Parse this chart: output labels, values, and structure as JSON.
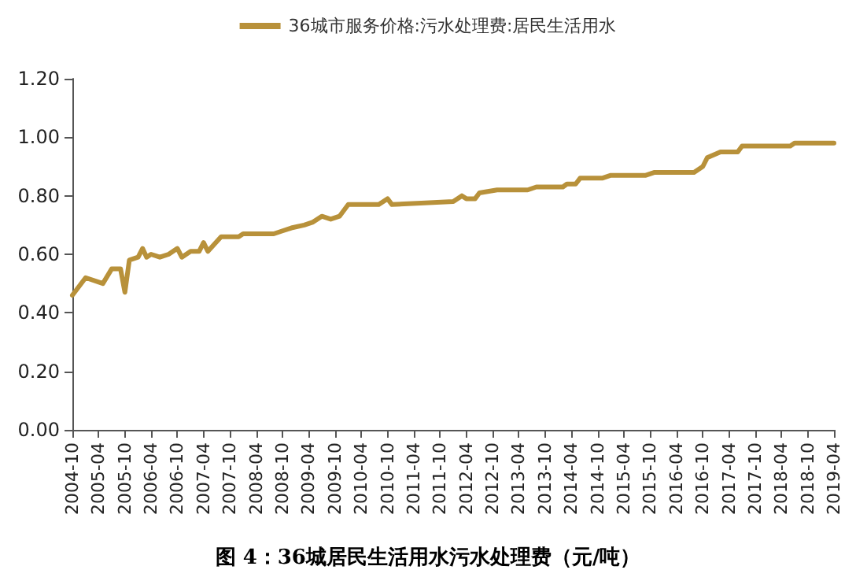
{
  "chart_data": {
    "type": "line",
    "annotations": [
      "图 4：36城居民生活用水污水处理费（元/吨）"
    ],
    "legend": "top",
    "grid": false,
    "marker": "none",
    "line_style": "solid",
    "ylim": [
      0,
      1.2
    ],
    "yticks": [
      {
        "value": 0,
        "label": "0.00"
      },
      {
        "value": 0.2,
        "label": "0.20"
      },
      {
        "value": 0.4,
        "label": "0.40"
      },
      {
        "value": 0.6,
        "label": "0.60"
      },
      {
        "value": 0.8,
        "label": "0.80"
      },
      {
        "value": 1,
        "label": "1.00"
      },
      {
        "value": 1.2,
        "label": "1.20"
      }
    ],
    "xlim": [
      "2004-10",
      "2019-04"
    ],
    "xticks": [
      "2004-10",
      "2005-04",
      "2005-10",
      "2006-04",
      "2006-10",
      "2007-04",
      "2007-10",
      "2008-04",
      "2008-10",
      "2009-04",
      "2009-10",
      "2010-04",
      "2010-10",
      "2011-04",
      "2011-10",
      "2012-04",
      "2012-10",
      "2013-04",
      "2013-10",
      "2014-04",
      "2014-10",
      "2015-04",
      "2015-10",
      "2016-04",
      "2016-10",
      "2017-04",
      "2017-10",
      "2018-04",
      "2018-10",
      "2019-04"
    ],
    "series": [
      {
        "name": "36城市服务价格:污水处理费:居民生活用水",
        "color": "#b8913a",
        "x": [
          "2004-10",
          "2005-01",
          "2005-05",
          "2005-07",
          "2005-09",
          "2005-10",
          "2005-11",
          "2006-01",
          "2006-02",
          "2006-03",
          "2006-04",
          "2006-06",
          "2006-08",
          "2006-10",
          "2006-11",
          "2007-01",
          "2007-03",
          "2007-04",
          "2007-05",
          "2007-08",
          "2007-12",
          "2008-01",
          "2008-08",
          "2008-10",
          "2008-12",
          "2009-03",
          "2009-05",
          "2009-07",
          "2009-09",
          "2009-11",
          "2010-01",
          "2010-08",
          "2010-10",
          "2010-11",
          "2012-01",
          "2012-03",
          "2012-04",
          "2012-06",
          "2012-07",
          "2012-11",
          "2013-06",
          "2013-08",
          "2014-02",
          "2014-03",
          "2014-05",
          "2014-06",
          "2014-11",
          "2015-01",
          "2015-09",
          "2015-11",
          "2016-08",
          "2016-10",
          "2016-11",
          "2017-02",
          "2017-06",
          "2017-07",
          "2018-06",
          "2018-07",
          "2019-04"
        ],
        "values": [
          0.46,
          0.52,
          0.5,
          0.55,
          0.55,
          0.47,
          0.58,
          0.59,
          0.62,
          0.59,
          0.6,
          0.59,
          0.6,
          0.62,
          0.59,
          0.61,
          0.61,
          0.64,
          0.61,
          0.66,
          0.66,
          0.67,
          0.67,
          0.68,
          0.69,
          0.7,
          0.71,
          0.73,
          0.72,
          0.73,
          0.77,
          0.77,
          0.79,
          0.77,
          0.78,
          0.8,
          0.79,
          0.79,
          0.81,
          0.82,
          0.82,
          0.83,
          0.83,
          0.84,
          0.84,
          0.86,
          0.86,
          0.87,
          0.87,
          0.88,
          0.88,
          0.9,
          0.93,
          0.95,
          0.95,
          0.97,
          0.97,
          0.98,
          0.98
        ]
      }
    ]
  }
}
